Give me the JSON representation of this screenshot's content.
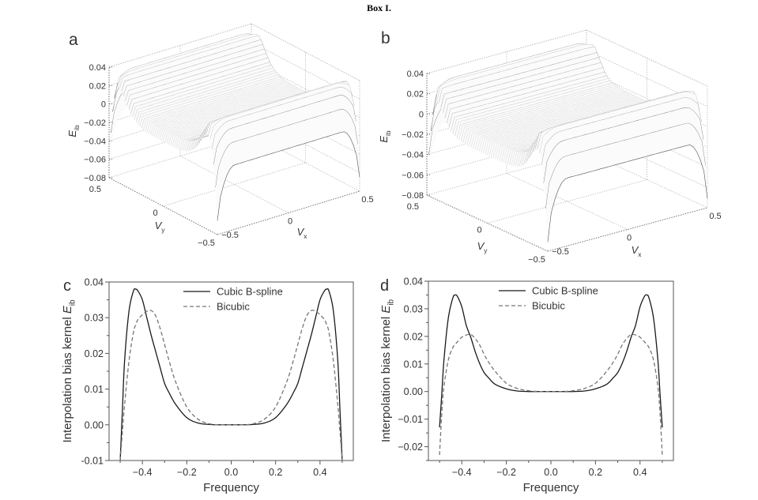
{
  "figure_title": "Box I.",
  "colors": {
    "line": "#1a1a1a",
    "dashed": "#777777",
    "axis": "#555555",
    "grid": "#bbbbbb",
    "surface_stroke": "#555555"
  },
  "chart_data": [
    {
      "panel": "a",
      "type": "surface",
      "xlabel": "V",
      "xlabel_sub": "x",
      "ylabel": "V",
      "ylabel_sub": "y",
      "zlabel": "E",
      "zlabel_sub": "ib",
      "xlim": [
        -0.5,
        0.5
      ],
      "ylim": [
        -0.5,
        0.5
      ],
      "zlim": [
        -0.08,
        0.04
      ],
      "x_ticks": [
        "-0.5",
        "0",
        "0.5"
      ],
      "y_ticks": [
        "0.5",
        "0",
        "-0.5"
      ],
      "z_ticks": [
        "0.04",
        "0.02",
        "0",
        "-0.02",
        "-0.04",
        "-0.06",
        "-0.08"
      ],
      "grid": true
    },
    {
      "panel": "b",
      "type": "surface",
      "xlabel": "V",
      "xlabel_sub": "x",
      "ylabel": "V",
      "ylabel_sub": "y",
      "zlabel": "E",
      "zlabel_sub": "ib",
      "xlim": [
        -0.5,
        0.5
      ],
      "ylim": [
        -0.5,
        0.5
      ],
      "zlim": [
        -0.08,
        0.04
      ],
      "x_ticks": [
        "-0.5",
        "0",
        "0.5"
      ],
      "y_ticks": [
        "0.5",
        "0",
        "-0.5"
      ],
      "z_ticks": [
        "0.04",
        "0.02",
        "0",
        "-0.02",
        "-0.04",
        "-0.06",
        "-0.08"
      ],
      "grid": true
    },
    {
      "panel": "c",
      "type": "line",
      "xlabel": "Frequency",
      "ylabel": "Interpolation bias kernel",
      "ylabel_symbol": "E",
      "ylabel_sub": "ib",
      "xlim": [
        -0.55,
        0.55
      ],
      "ylim": [
        -0.01,
        0.04
      ],
      "x_ticks": [
        "-0.4",
        "-0.2",
        "0.0",
        "0.2",
        "0.4"
      ],
      "y_ticks": [
        "0.04",
        "0.03",
        "0.02",
        "0.01",
        "0.00",
        "-0.01"
      ],
      "legend_position": "top-center",
      "x": [
        -0.5,
        -0.49,
        -0.48,
        -0.46,
        -0.44,
        -0.43,
        -0.42,
        -0.4,
        -0.38,
        -0.36,
        -0.34,
        -0.32,
        -0.3,
        -0.28,
        -0.25,
        -0.2,
        -0.15,
        -0.1,
        -0.05,
        0,
        0.05,
        0.1,
        0.15,
        0.2,
        0.25,
        0.28,
        0.3,
        0.32,
        0.34,
        0.36,
        0.38,
        0.4,
        0.42,
        0.43,
        0.44,
        0.46,
        0.48,
        0.49,
        0.5
      ],
      "series": [
        {
          "name": "Cubic B-spline",
          "style": "solid",
          "values": [
            -0.01,
            0.004,
            0.018,
            0.032,
            0.0375,
            0.038,
            0.0375,
            0.035,
            0.03,
            0.025,
            0.0205,
            0.016,
            0.0116,
            0.009,
            0.0057,
            0.002,
            0.0005,
            0.0001,
            0,
            0,
            0,
            0.0001,
            0.0005,
            0.002,
            0.0057,
            0.009,
            0.0116,
            0.016,
            0.0205,
            0.025,
            0.03,
            0.035,
            0.0375,
            0.038,
            0.0375,
            0.032,
            0.018,
            0.004,
            -0.01
          ]
        },
        {
          "name": "Bicubic",
          "style": "dashed",
          "values": [
            -0.01,
            -0.002,
            0.0057,
            0.018,
            0.026,
            0.028,
            0.0295,
            0.0308,
            0.0318,
            0.032,
            0.0305,
            0.027,
            0.0225,
            0.018,
            0.012,
            0.005,
            0.0016,
            0.0003,
            0,
            0,
            0,
            0.0003,
            0.0016,
            0.005,
            0.012,
            0.018,
            0.0225,
            0.027,
            0.0305,
            0.032,
            0.0318,
            0.0308,
            0.0295,
            0.028,
            0.026,
            0.018,
            0.0057,
            -0.002,
            -0.01
          ]
        }
      ]
    },
    {
      "panel": "d",
      "type": "line",
      "xlabel": "Frequency",
      "ylabel": "Interpolation bias kernel",
      "ylabel_symbol": "E",
      "ylabel_sub": "ib",
      "xlim": [
        -0.55,
        0.55
      ],
      "ylim": [
        -0.025,
        0.04
      ],
      "x_ticks": [
        "-0.4",
        "-0.2",
        "0.0",
        "0.2",
        "0.4"
      ],
      "y_ticks": [
        "0.04",
        "0.03",
        "0.02",
        "0.01",
        "0.00",
        "-0.01",
        "-0.02"
      ],
      "legend_position": "top-center",
      "x": [
        -0.5,
        -0.49,
        -0.48,
        -0.46,
        -0.44,
        -0.43,
        -0.42,
        -0.4,
        -0.38,
        -0.36,
        -0.34,
        -0.32,
        -0.3,
        -0.28,
        -0.25,
        -0.2,
        -0.15,
        -0.1,
        -0.05,
        0,
        0.05,
        0.1,
        0.15,
        0.2,
        0.25,
        0.28,
        0.3,
        0.32,
        0.34,
        0.36,
        0.38,
        0.4,
        0.42,
        0.43,
        0.44,
        0.46,
        0.48,
        0.49,
        0.5
      ],
      "series": [
        {
          "name": "Cubic B-spline",
          "style": "solid",
          "values": [
            -0.013,
            -0.001,
            0.0116,
            0.027,
            0.034,
            0.035,
            0.0345,
            0.0307,
            0.024,
            0.0197,
            0.0145,
            0.0102,
            0.0069,
            0.005,
            0.0026,
            0.001,
            0.0002,
            0,
            0,
            0,
            0,
            0,
            0.0002,
            0.001,
            0.0026,
            0.005,
            0.0069,
            0.0102,
            0.0145,
            0.0197,
            0.024,
            0.0307,
            0.0345,
            0.035,
            0.034,
            0.027,
            0.0116,
            -0.001,
            -0.013
          ]
        },
        {
          "name": "Bicubic",
          "style": "dashed",
          "values": [
            -0.023,
            -0.008,
            0.002,
            0.0116,
            0.016,
            0.017,
            0.018,
            0.0197,
            0.0205,
            0.0207,
            0.0192,
            0.0169,
            0.0135,
            0.0107,
            0.0073,
            0.003,
            0.0011,
            0.0003,
            0,
            0,
            0,
            0.0003,
            0.0011,
            0.003,
            0.0073,
            0.0107,
            0.0135,
            0.0169,
            0.0192,
            0.0207,
            0.0205,
            0.0197,
            0.018,
            0.017,
            0.016,
            0.0116,
            0.002,
            -0.008,
            -0.023
          ]
        }
      ]
    }
  ]
}
